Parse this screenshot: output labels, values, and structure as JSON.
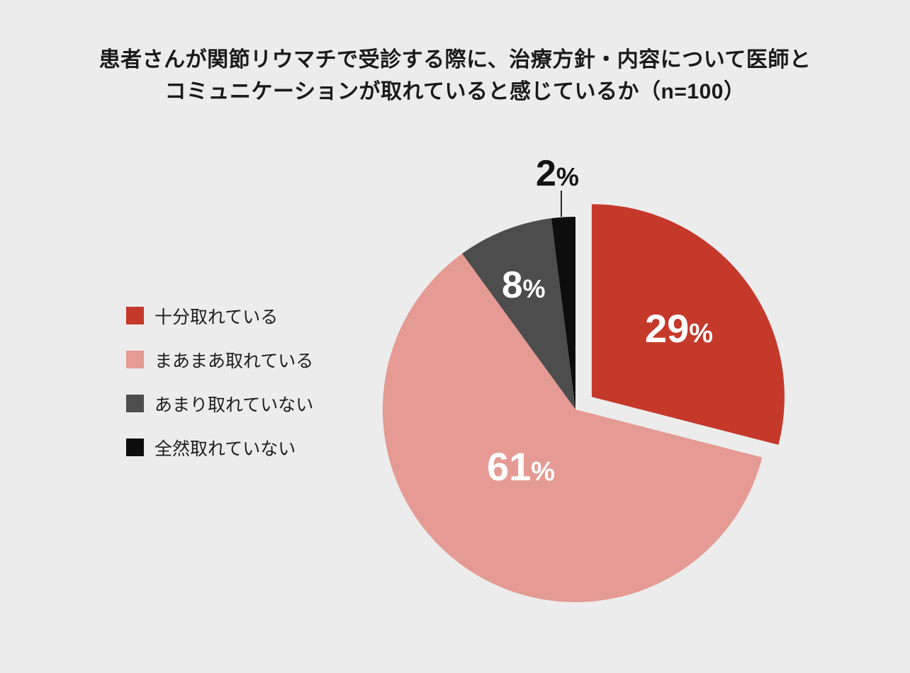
{
  "page": {
    "background": "#ececec"
  },
  "title": {
    "line1": "患者さんが関節リウマチで受診する際に、治療方針・内容について医師と",
    "line2": "コミュニケーションが取れていると感じているか（n=100）"
  },
  "legend": {
    "items": [
      {
        "label": "十分取れている",
        "color": "#c5392b"
      },
      {
        "label": "まあまあ取れている",
        "color": "#e59a93"
      },
      {
        "label": "あまり取れていない",
        "color": "#4d4d4d"
      },
      {
        "label": "全然取れていない",
        "color": "#0d0d0d"
      }
    ]
  },
  "chart_data": {
    "type": "pie",
    "title": "患者さんが関節リウマチで受診する際に、治療方針・内容について医師とコミュニケーションが取れていると感じているか",
    "sample_size": "n=100",
    "categories": [
      "十分取れている",
      "まあまあ取れている",
      "あまり取れていない",
      "全然取れていない"
    ],
    "values": [
      29,
      61,
      8,
      2
    ],
    "unit": "%",
    "colors": [
      "#c5392b",
      "#e59a93",
      "#4d4d4d",
      "#0d0d0d"
    ],
    "value_label_colors": [
      "#ffffff",
      "#ffffff",
      "#ffffff",
      "#141414"
    ],
    "start_angle_deg": 0,
    "direction": "clockwise",
    "exploded_index": 0,
    "legend_position": "left",
    "background": "#ececec"
  }
}
